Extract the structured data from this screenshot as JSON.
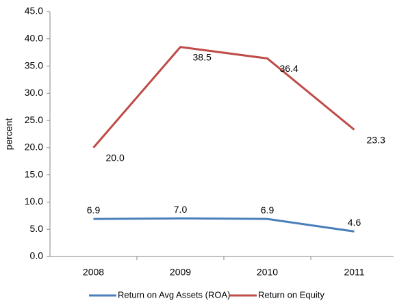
{
  "chart_data": {
    "type": "line",
    "y_label": "percent",
    "categories": [
      "2008",
      "2009",
      "2010",
      "2011"
    ],
    "series": [
      {
        "name": "Return on Avg Assets (ROA)",
        "color": "#4a7ebb",
        "values": [
          6.9,
          7.0,
          6.9,
          4.6
        ],
        "value_labels": [
          "6.9",
          "7.0",
          "6.9",
          "4.6"
        ]
      },
      {
        "name": "Return on Equity",
        "color": "#be4b48",
        "values": [
          20.0,
          38.5,
          36.4,
          23.3
        ],
        "value_labels": [
          "20.0",
          "38.5",
          "36.4",
          "23.3"
        ]
      }
    ],
    "ylim": [
      0,
      45
    ],
    "yticks": [
      {
        "value": 0,
        "label": "0.0"
      },
      {
        "value": 5,
        "label": "5.0"
      },
      {
        "value": 10,
        "label": "10.0"
      },
      {
        "value": 15,
        "label": "15.0"
      },
      {
        "value": 20,
        "label": "20.0"
      },
      {
        "value": 25,
        "label": "25.0"
      },
      {
        "value": 30,
        "label": "30.0"
      },
      {
        "value": 35,
        "label": "35.0"
      },
      {
        "value": 40,
        "label": "40.0"
      },
      {
        "value": 45,
        "label": "45.0"
      }
    ],
    "grid": false,
    "legend": "bottom"
  }
}
